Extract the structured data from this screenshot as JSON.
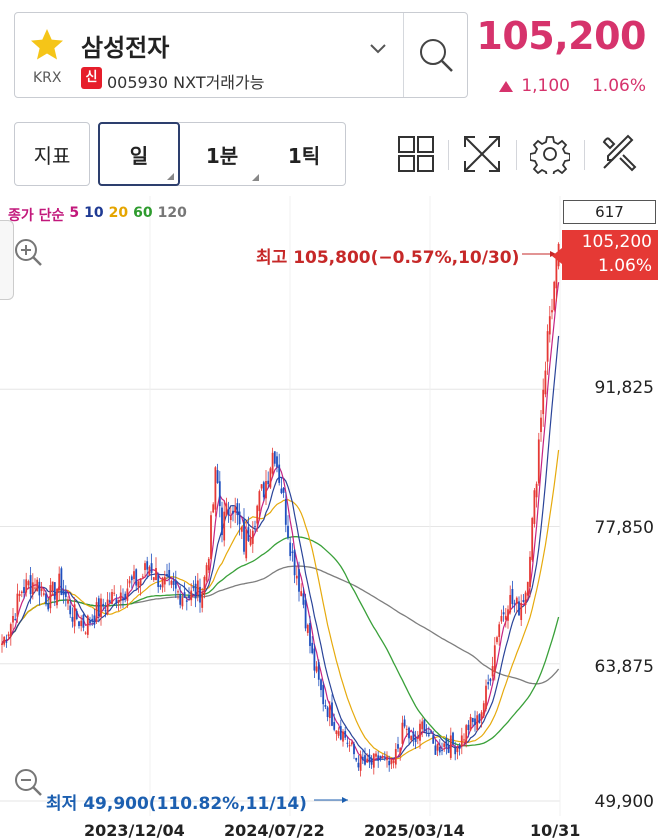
{
  "header": {
    "stock_name": "삼성전자",
    "exchange": "KRX",
    "credit_badge": "신",
    "code_text": "005930 NXT거래가능",
    "price": "105,200",
    "change": "1,100",
    "change_pct": "1.06%",
    "colors": {
      "up": "#d6336c",
      "star": "#f5c518",
      "badge": "#e61e2b"
    }
  },
  "toolbar": {
    "indicator_label": "지표",
    "periods": [
      "일",
      "1분",
      "1틱"
    ],
    "selected_period": "일",
    "icons": [
      "layout-grid-icon",
      "fullscreen-icon",
      "gear-icon",
      "tools-icon"
    ]
  },
  "chart": {
    "legend": {
      "prefix": "종가 단순",
      "periods": [
        {
          "label": "5",
          "color": "#c2187b"
        },
        {
          "label": "10",
          "color": "#1f3a93"
        },
        {
          "label": "20",
          "color": "#e5a500"
        },
        {
          "label": "60",
          "color": "#2e9b2e"
        },
        {
          "label": "120",
          "color": "#777777"
        }
      ]
    },
    "volume_box": "617",
    "current_tag": {
      "price": "105,200",
      "pct": "1.06%"
    },
    "high_label": "최고 105,800(−0.57%,10/30)",
    "low_label": "최저 49,900(110.82%,11/14)",
    "y_ticks": [
      "91,825",
      "77,850",
      "63,875",
      "49,900"
    ],
    "x_ticks": [
      "2023/12/04",
      "2024/07/22",
      "2025/03/14",
      "10/31"
    ]
  },
  "chart_data": {
    "type": "candlestick",
    "ylim": [
      49900,
      105800
    ],
    "y_ticks": [
      91825,
      77850,
      63875,
      49900
    ],
    "x_ticks": [
      "2023/12/04",
      "2024/07/22",
      "2025/03/14",
      "10/31"
    ],
    "high": {
      "value": 105800,
      "date": "10/30"
    },
    "low": {
      "value": 49900,
      "date": "11/14"
    },
    "last": 105200,
    "ma_periods": [
      5,
      10,
      20,
      60,
      120
    ],
    "close_path": [
      [
        0,
        65500
      ],
      [
        10,
        67800
      ],
      [
        22,
        71500
      ],
      [
        35,
        72300
      ],
      [
        48,
        70500
      ],
      [
        60,
        72000
      ],
      [
        72,
        69000
      ],
      [
        85,
        67800
      ],
      [
        100,
        69500
      ],
      [
        115,
        70800
      ],
      [
        128,
        71800
      ],
      [
        140,
        72500
      ],
      [
        150,
        74000
      ],
      [
        162,
        72000
      ],
      [
        175,
        71200
      ],
      [
        190,
        70800
      ],
      [
        203,
        71500
      ],
      [
        210,
        76500
      ],
      [
        216,
        83500
      ],
      [
        222,
        78000
      ],
      [
        232,
        80500
      ],
      [
        244,
        76000
      ],
      [
        256,
        79500
      ],
      [
        266,
        82500
      ],
      [
        274,
        86000
      ],
      [
        282,
        81500
      ],
      [
        292,
        75000
      ],
      [
        302,
        71000
      ],
      [
        312,
        64500
      ],
      [
        322,
        60500
      ],
      [
        333,
        58200
      ],
      [
        345,
        56500
      ],
      [
        356,
        54200
      ],
      [
        368,
        53400
      ],
      [
        380,
        54300
      ],
      [
        392,
        53200
      ],
      [
        404,
        57500
      ],
      [
        414,
        55500
      ],
      [
        424,
        58000
      ],
      [
        434,
        55200
      ],
      [
        446,
        55800
      ],
      [
        458,
        55500
      ],
      [
        468,
        57500
      ],
      [
        478,
        58000
      ],
      [
        488,
        61500
      ],
      [
        498,
        67800
      ],
      [
        508,
        70500
      ],
      [
        518,
        69500
      ],
      [
        526,
        71500
      ],
      [
        534,
        80000
      ],
      [
        542,
        91000
      ],
      [
        550,
        99500
      ],
      [
        556,
        103500
      ],
      [
        559,
        105200
      ]
    ]
  }
}
